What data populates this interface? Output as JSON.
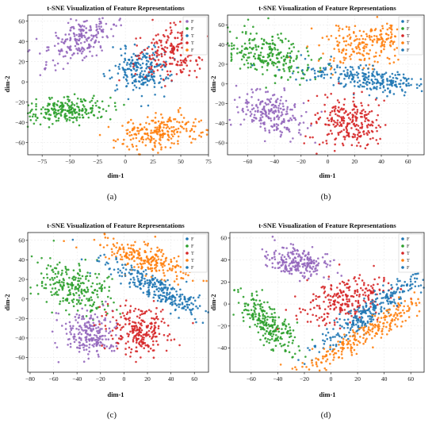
{
  "colors": {
    "purple": "#9467bd",
    "green": "#2ca02c",
    "blue": "#1f77b4",
    "red": "#d62728",
    "orange": "#ff7f0e"
  },
  "chart_data": [
    {
      "id": "a",
      "type": "scatter",
      "caption": "(a)",
      "title": "t-SNE Visualization of Feature Representations",
      "xlabel": "dim-1",
      "ylabel": "dim-2",
      "xlim": [
        -88,
        75
      ],
      "ylim": [
        -72,
        66
      ],
      "xticks": [
        -75,
        -50,
        -25,
        0,
        25,
        50,
        75
      ],
      "yticks": [
        -60,
        -40,
        -20,
        0,
        20,
        40,
        60
      ],
      "grid": true,
      "legend_position": "top-right",
      "legend": [
        "F",
        "F",
        "T",
        "T",
        "F"
      ],
      "clusters": [
        {
          "color": "purple",
          "x": -40,
          "y": 42,
          "sx": 9,
          "sy": 16,
          "angle": -55,
          "n": 210
        },
        {
          "color": "green",
          "x": -52,
          "y": -28,
          "sx": 20,
          "sy": 6,
          "angle": 4,
          "n": 230
        },
        {
          "color": "blue",
          "x": 14,
          "y": 12,
          "sx": 13,
          "sy": 12,
          "angle": 0,
          "n": 230
        },
        {
          "color": "red",
          "x": 48,
          "y": 30,
          "sx": 12,
          "sy": 18,
          "angle": -65,
          "n": 240
        },
        {
          "color": "orange",
          "x": 32,
          "y": -50,
          "sx": 20,
          "sy": 8,
          "angle": 10,
          "n": 240
        }
      ]
    },
    {
      "id": "b",
      "type": "scatter",
      "caption": "(b)",
      "title": "t-SNE Visualization of Feature Representations",
      "xlabel": "dim-1",
      "ylabel": "dim-2",
      "xlim": [
        -75,
        72
      ],
      "ylim": [
        -72,
        70
      ],
      "xticks": [
        -60,
        -40,
        -20,
        0,
        20,
        40,
        60
      ],
      "yticks": [
        -60,
        -40,
        -20,
        0,
        20,
        40,
        60
      ],
      "grid": true,
      "legend_position": "top-right",
      "legend": [
        "F",
        "F",
        "T",
        "T",
        "F"
      ],
      "clusters": [
        {
          "color": "green",
          "x": -44,
          "y": 30,
          "sx": 18,
          "sy": 10,
          "angle": -30,
          "n": 250
        },
        {
          "color": "purple",
          "x": -42,
          "y": -30,
          "sx": 14,
          "sy": 10,
          "angle": -38,
          "n": 220
        },
        {
          "color": "orange",
          "x": 30,
          "y": 42,
          "sx": 18,
          "sy": 12,
          "angle": 15,
          "n": 230
        },
        {
          "color": "blue",
          "x": 32,
          "y": 4,
          "sx": 26,
          "sy": 6,
          "angle": -12,
          "n": 280
        },
        {
          "color": "red",
          "x": 15,
          "y": -40,
          "sx": 12,
          "sy": 14,
          "angle": 0,
          "n": 240
        }
      ]
    },
    {
      "id": "c",
      "type": "scatter",
      "caption": "(c)",
      "title": "t-SNE Visualization of Feature Representations",
      "xlabel": "dim-1",
      "ylabel": "dim-2",
      "xlim": [
        -82,
        72
      ],
      "ylim": [
        -75,
        68
      ],
      "xticks": [
        -80,
        -60,
        -40,
        -20,
        0,
        20,
        40,
        60
      ],
      "yticks": [
        -60,
        -40,
        -20,
        0,
        20,
        40,
        60
      ],
      "grid": true,
      "legend_position": "top-right",
      "legend": [
        "F",
        "F",
        "T",
        "T",
        "F"
      ],
      "clusters": [
        {
          "color": "green",
          "x": -42,
          "y": 12,
          "sx": 12,
          "sy": 18,
          "angle": 55,
          "n": 240
        },
        {
          "color": "purple",
          "x": -30,
          "y": -38,
          "sx": 12,
          "sy": 12,
          "angle": -25,
          "n": 220
        },
        {
          "color": "orange",
          "x": 22,
          "y": 40,
          "sx": 22,
          "sy": 7,
          "angle": -25,
          "n": 240
        },
        {
          "color": "blue",
          "x": 28,
          "y": 10,
          "sx": 26,
          "sy": 6,
          "angle": -33,
          "n": 280
        },
        {
          "color": "red",
          "x": 12,
          "y": -30,
          "sx": 14,
          "sy": 12,
          "angle": -18,
          "n": 240
        }
      ]
    },
    {
      "id": "d",
      "type": "scatter",
      "caption": "(d)",
      "title": "t-SNE Visualization of Feature Representations",
      "xlabel": "dim-1",
      "ylabel": "dim-2",
      "xlim": [
        -76,
        70
      ],
      "ylim": [
        -62,
        65
      ],
      "xticks": [
        -60,
        -40,
        -20,
        0,
        20,
        40,
        60
      ],
      "yticks": [
        -40,
        -20,
        0,
        20,
        40,
        60
      ],
      "grid": true,
      "legend_position": "top-right",
      "legend": [
        "F",
        "F",
        "T",
        "T",
        "F"
      ],
      "clusters": [
        {
          "color": "purple",
          "x": -25,
          "y": 38,
          "sx": 6,
          "sy": 13,
          "angle": 75,
          "n": 220
        },
        {
          "color": "green",
          "x": -48,
          "y": -16,
          "sx": 16,
          "sy": 6,
          "angle": -52,
          "n": 240
        },
        {
          "color": "red",
          "x": 10,
          "y": 5,
          "sx": 18,
          "sy": 10,
          "angle": 28,
          "n": 250
        },
        {
          "color": "blue",
          "x": 32,
          "y": -4,
          "sx": 28,
          "sy": 5,
          "angle": 40,
          "n": 280
        },
        {
          "color": "orange",
          "x": 25,
          "y": -28,
          "sx": 32,
          "sy": 5,
          "angle": 36,
          "n": 260
        }
      ]
    }
  ]
}
